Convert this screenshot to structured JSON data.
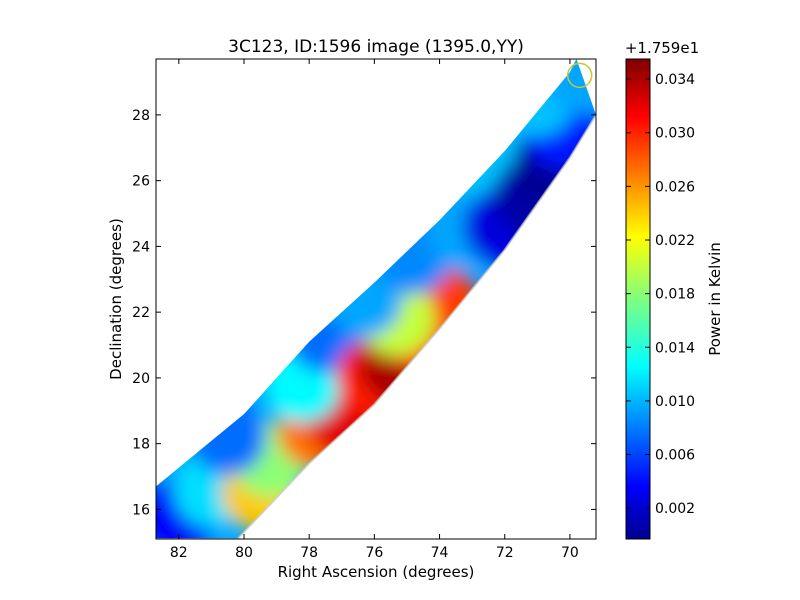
{
  "chart_data": [
    {
      "type": "heatmap",
      "title": "3C123, ID:1596 image (1395.0,YY)",
      "xlabel": "Right Ascension (degrees)",
      "ylabel": "Declination (degrees)",
      "xlim": [
        82.7,
        69.2
      ],
      "ylim": [
        15.1,
        29.7
      ],
      "x_inverted": true,
      "xticks": [
        82,
        80,
        78,
        76,
        74,
        72,
        70
      ],
      "yticks": [
        16,
        18,
        20,
        22,
        24,
        26,
        28
      ],
      "grid": false,
      "colormap": "jet",
      "marker": {
        "shape": "circle",
        "ra": 69.7,
        "dec": 29.2,
        "color": "#c8c832"
      },
      "strip": {
        "upper_edge": [
          [
            82.7,
            16.7
          ],
          [
            80,
            18.9
          ],
          [
            78,
            21.1
          ],
          [
            76,
            22.9
          ],
          [
            74,
            24.8
          ],
          [
            72,
            26.9
          ],
          [
            70,
            29.3
          ],
          [
            69.8,
            29.7
          ]
        ],
        "lower_edge": [
          [
            82.7,
            15.1
          ],
          [
            80.2,
            15.1
          ],
          [
            78,
            17.4
          ],
          [
            76,
            19.2
          ],
          [
            74,
            21.5
          ],
          [
            72,
            23.9
          ],
          [
            70,
            26.7
          ],
          [
            69.2,
            28.0
          ]
        ]
      },
      "samples": [
        {
          "ra": 82.0,
          "dec": 15.8,
          "value": 0.004
        },
        {
          "ra": 81.0,
          "dec": 16.6,
          "value": 0.012
        },
        {
          "ra": 79.5,
          "dec": 16.5,
          "value": 0.024
        },
        {
          "ra": 79.2,
          "dec": 17.5,
          "value": 0.018
        },
        {
          "ra": 80.5,
          "dec": 18.2,
          "value": 0.008
        },
        {
          "ra": 77.8,
          "dec": 18.4,
          "value": 0.027
        },
        {
          "ra": 76.9,
          "dec": 18.7,
          "value": 0.032
        },
        {
          "ra": 78.2,
          "dec": 19.8,
          "value": 0.013
        },
        {
          "ra": 77.5,
          "dec": 21.3,
          "value": 0.008
        },
        {
          "ra": 76.0,
          "dec": 20.0,
          "value": 0.03
        },
        {
          "ra": 75.3,
          "dec": 20.4,
          "value": 0.034
        },
        {
          "ra": 74.4,
          "dec": 21.3,
          "value": 0.031
        },
        {
          "ra": 73.9,
          "dec": 22.2,
          "value": 0.029
        },
        {
          "ra": 75.3,
          "dec": 21.8,
          "value": 0.02
        },
        {
          "ra": 76.3,
          "dec": 22.4,
          "value": 0.01
        },
        {
          "ra": 74.8,
          "dec": 23.7,
          "value": 0.009
        },
        {
          "ra": 73.2,
          "dec": 24.5,
          "value": 0.01
        },
        {
          "ra": 72.6,
          "dec": 26.5,
          "value": 0.011
        },
        {
          "ra": 72.1,
          "dec": 24.6,
          "value": 0.003
        },
        {
          "ra": 71.2,
          "dec": 25.5,
          "value": 0.001
        },
        {
          "ra": 70.6,
          "dec": 26.4,
          "value": 0.0005
        },
        {
          "ra": 70.2,
          "dec": 27.5,
          "value": 0.005
        },
        {
          "ra": 71.0,
          "dec": 28.5,
          "value": 0.011
        },
        {
          "ra": 69.7,
          "dec": 29.2,
          "value": 0.01
        }
      ]
    },
    {
      "type": "colorbar",
      "offset_label": "+1.759e1",
      "label": "Power in Kelvin",
      "vmin": -0.0003,
      "vmax": 0.0355,
      "ticks": [
        0.002,
        0.006,
        0.01,
        0.014,
        0.018,
        0.022,
        0.026,
        0.03,
        0.034
      ],
      "tick_labels": [
        "0.002",
        "0.006",
        "0.010",
        "0.014",
        "0.018",
        "0.022",
        "0.026",
        "0.030",
        "0.034"
      ]
    }
  ]
}
